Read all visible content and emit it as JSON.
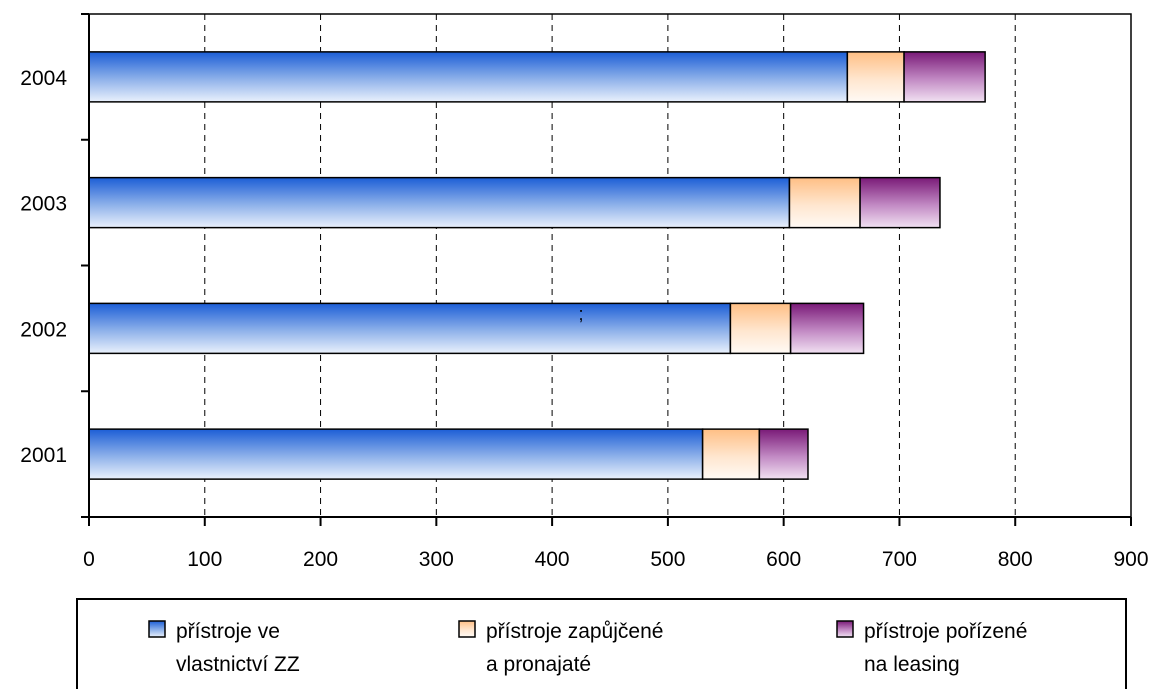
{
  "chart_data": {
    "type": "bar",
    "orientation": "horizontal",
    "stacked": true,
    "categories": [
      "2001",
      "2002",
      "2003",
      "2004"
    ],
    "series": [
      {
        "name": "přístroje ve vlastnictví ZZ",
        "legend_lines": [
          "přístroje ve",
          "vlastnictví ZZ"
        ],
        "values": [
          530,
          554,
          605,
          655
        ],
        "color": "#2f6fd8"
      },
      {
        "name": "přístroje zapůjčené a pronajaté",
        "legend_lines": [
          "přístroje zapůjčené",
          "a pronajaté"
        ],
        "values": [
          49,
          52,
          61,
          49
        ],
        "color": "#ffc896"
      },
      {
        "name": "přístroje pořízené na leasing",
        "legend_lines": [
          "přístroje pořízené",
          "na leasing"
        ],
        "values": [
          42,
          63,
          69,
          70
        ],
        "color": "#8a2a86"
      }
    ],
    "x_ticks": [
      "0",
      "100",
      "200",
      "300",
      "400",
      "500",
      "600",
      "700",
      "800",
      "900"
    ],
    "xlim": [
      0,
      900
    ],
    "xlabel": "",
    "ylabel": "",
    "title": "",
    "grid": "vertical dashed",
    "legend_position": "bottom",
    "annotations": [
      ";"
    ]
  }
}
